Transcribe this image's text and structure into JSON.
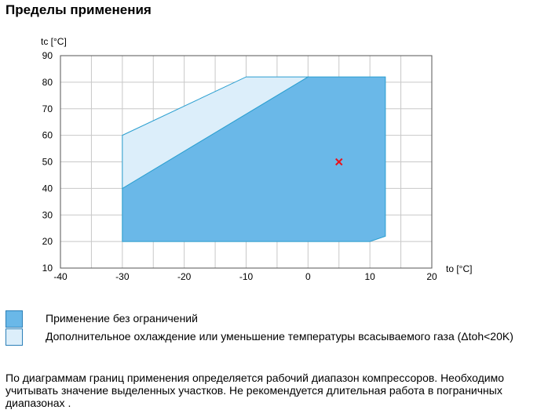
{
  "page": {
    "title": "Пределы применения"
  },
  "chart_data": {
    "type": "area",
    "title": "",
    "xlabel": "to [°C]",
    "ylabel": "tc [°C]",
    "xlim": [
      -40,
      20
    ],
    "ylim": [
      10,
      90
    ],
    "x_ticks": [
      -40,
      -30,
      -20,
      -10,
      0,
      10,
      20
    ],
    "y_ticks": [
      10,
      20,
      30,
      40,
      50,
      60,
      70,
      80,
      90
    ],
    "x_grid": [
      -35,
      -30,
      -25,
      -20,
      -15,
      -10,
      -5,
      0,
      5,
      10,
      15
    ],
    "grid": true,
    "series": [
      {
        "name": "Применение без ограничений",
        "color": "#6ab8e8",
        "polygon": [
          [
            -30,
            20
          ],
          [
            -30,
            40
          ],
          [
            0,
            82
          ],
          [
            12.5,
            82
          ],
          [
            12.5,
            22
          ],
          [
            10,
            20
          ]
        ]
      },
      {
        "name": "Дополнительное охлаждение или уменьшение температуры всасываемого газа (Δtoh<20K)",
        "color": "#dceefa",
        "polygon": [
          [
            -30,
            40
          ],
          [
            -30,
            60
          ],
          [
            -10,
            82
          ],
          [
            0,
            82
          ]
        ]
      }
    ],
    "operating_point": {
      "x": 5,
      "y": 50,
      "marker": "x",
      "color": "#e8141c"
    }
  },
  "legend": [
    {
      "label": "Применение без ограничений",
      "color": "#6ab8e8"
    },
    {
      "label": "Дополнительное охлаждение или уменьшение температуры всасываемого газа (Δtoh<20K)",
      "color": "#dceefa"
    }
  ],
  "note": "По диаграммам границ применения определяется рабочий диапазон компрессоров. Необходимо учитывать значение выделенных участков. Не рекомендуется длительная работа в пограничных диапазонах ."
}
